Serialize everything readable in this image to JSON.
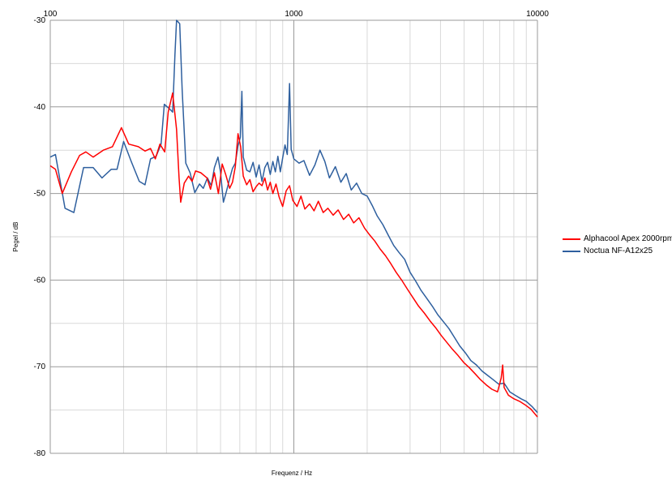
{
  "chart_data": {
    "type": "line",
    "title": "",
    "xlabel": "Frequenz / Hz",
    "ylabel": "Pegel / dB",
    "x_scale": "log",
    "xlim": [
      100,
      10000
    ],
    "ylim": [
      -80,
      -30
    ],
    "x_ticks": [
      100,
      1000,
      10000
    ],
    "x_tick_labels": [
      "100",
      "1000",
      "10000"
    ],
    "y_ticks": [
      -30,
      -40,
      -50,
      -60,
      -70,
      -80
    ],
    "y_tick_labels": [
      "-30",
      "-40",
      "-50",
      "-60",
      "-70",
      "-80"
    ],
    "grid": true,
    "legend_position": "right",
    "series": [
      {
        "name": "Alphacool Apex 2000rpm",
        "color": "#ff0000",
        "points": [
          [
            100,
            -46.8
          ],
          [
            105,
            -47.2
          ],
          [
            112,
            -50.0
          ],
          [
            122,
            -47.5
          ],
          [
            132,
            -45.6
          ],
          [
            140,
            -45.2
          ],
          [
            150,
            -45.8
          ],
          [
            165,
            -45.0
          ],
          [
            180,
            -44.6
          ],
          [
            196,
            -42.4
          ],
          [
            210,
            -44.3
          ],
          [
            230,
            -44.6
          ],
          [
            245,
            -45.1
          ],
          [
            258,
            -44.8
          ],
          [
            270,
            -46.0
          ],
          [
            282,
            -44.3
          ],
          [
            295,
            -45.2
          ],
          [
            305,
            -40.6
          ],
          [
            318,
            -38.4
          ],
          [
            330,
            -42.6
          ],
          [
            338,
            -48.2
          ],
          [
            343,
            -51.0
          ],
          [
            355,
            -48.8
          ],
          [
            370,
            -48.0
          ],
          [
            382,
            -48.6
          ],
          [
            395,
            -47.4
          ],
          [
            415,
            -47.6
          ],
          [
            440,
            -48.2
          ],
          [
            455,
            -49.5
          ],
          [
            472,
            -47.6
          ],
          [
            490,
            -50.0
          ],
          [
            508,
            -46.6
          ],
          [
            525,
            -47.8
          ],
          [
            545,
            -49.4
          ],
          [
            560,
            -48.7
          ],
          [
            575,
            -46.9
          ],
          [
            590,
            -43.1
          ],
          [
            605,
            -44.6
          ],
          [
            620,
            -48.0
          ],
          [
            640,
            -49.0
          ],
          [
            660,
            -48.4
          ],
          [
            680,
            -49.8
          ],
          [
            700,
            -49.2
          ],
          [
            720,
            -48.8
          ],
          [
            740,
            -49.1
          ],
          [
            760,
            -48.2
          ],
          [
            780,
            -49.6
          ],
          [
            800,
            -48.7
          ],
          [
            820,
            -50.0
          ],
          [
            845,
            -48.9
          ],
          [
            870,
            -50.4
          ],
          [
            900,
            -51.5
          ],
          [
            930,
            -49.7
          ],
          [
            960,
            -49.1
          ],
          [
            990,
            -50.8
          ],
          [
            1030,
            -51.5
          ],
          [
            1070,
            -50.3
          ],
          [
            1110,
            -51.8
          ],
          [
            1160,
            -51.2
          ],
          [
            1210,
            -52.0
          ],
          [
            1260,
            -50.9
          ],
          [
            1320,
            -52.2
          ],
          [
            1380,
            -51.7
          ],
          [
            1450,
            -52.5
          ],
          [
            1520,
            -51.9
          ],
          [
            1600,
            -53.0
          ],
          [
            1680,
            -52.4
          ],
          [
            1760,
            -53.4
          ],
          [
            1850,
            -52.8
          ],
          [
            1950,
            -54.0
          ],
          [
            2050,
            -54.8
          ],
          [
            2150,
            -55.5
          ],
          [
            2260,
            -56.4
          ],
          [
            2380,
            -57.2
          ],
          [
            2500,
            -58.1
          ],
          [
            2630,
            -59.1
          ],
          [
            2770,
            -60.0
          ],
          [
            2920,
            -61.0
          ],
          [
            3080,
            -62.0
          ],
          [
            3250,
            -63.0
          ],
          [
            3430,
            -63.8
          ],
          [
            3620,
            -64.7
          ],
          [
            3820,
            -65.5
          ],
          [
            4030,
            -66.4
          ],
          [
            4250,
            -67.2
          ],
          [
            4480,
            -68.0
          ],
          [
            4720,
            -68.7
          ],
          [
            4980,
            -69.5
          ],
          [
            5250,
            -70.1
          ],
          [
            5540,
            -70.8
          ],
          [
            5840,
            -71.5
          ],
          [
            6160,
            -72.1
          ],
          [
            6500,
            -72.6
          ],
          [
            6860,
            -72.9
          ],
          [
            7100,
            -71.3
          ],
          [
            7200,
            -69.8
          ],
          [
            7300,
            -72.4
          ],
          [
            7600,
            -73.3
          ],
          [
            8000,
            -73.7
          ],
          [
            8450,
            -74.0
          ],
          [
            8900,
            -74.4
          ],
          [
            9400,
            -74.9
          ],
          [
            10000,
            -75.8
          ]
        ]
      },
      {
        "name": "Noctua NF-A12x25",
        "color": "#2e5f9e",
        "points": [
          [
            100,
            -45.8
          ],
          [
            105,
            -45.5
          ],
          [
            115,
            -51.7
          ],
          [
            125,
            -52.2
          ],
          [
            137,
            -47.0
          ],
          [
            150,
            -47.0
          ],
          [
            163,
            -48.2
          ],
          [
            178,
            -47.2
          ],
          [
            188,
            -47.2
          ],
          [
            200,
            -44.0
          ],
          [
            215,
            -46.3
          ],
          [
            232,
            -48.6
          ],
          [
            245,
            -49.0
          ],
          [
            258,
            -46.0
          ],
          [
            272,
            -45.7
          ],
          [
            285,
            -44.3
          ],
          [
            294,
            -39.7
          ],
          [
            308,
            -40.2
          ],
          [
            318,
            -40.6
          ],
          [
            325,
            -34.0
          ],
          [
            330,
            -30.0
          ],
          [
            340,
            -30.4
          ],
          [
            348,
            -38.0
          ],
          [
            360,
            -46.5
          ],
          [
            375,
            -47.6
          ],
          [
            392,
            -49.9
          ],
          [
            410,
            -48.9
          ],
          [
            425,
            -49.4
          ],
          [
            442,
            -48.2
          ],
          [
            458,
            -49.1
          ],
          [
            472,
            -47.0
          ],
          [
            488,
            -45.8
          ],
          [
            500,
            -47.5
          ],
          [
            514,
            -51.0
          ],
          [
            528,
            -49.8
          ],
          [
            545,
            -48.3
          ],
          [
            560,
            -47.1
          ],
          [
            575,
            -46.5
          ],
          [
            590,
            -44.5
          ],
          [
            603,
            -43.5
          ],
          [
            612,
            -38.2
          ],
          [
            620,
            -45.8
          ],
          [
            640,
            -47.3
          ],
          [
            660,
            -47.5
          ],
          [
            680,
            -46.4
          ],
          [
            700,
            -48.1
          ],
          [
            720,
            -46.7
          ],
          [
            740,
            -48.6
          ],
          [
            760,
            -47.0
          ],
          [
            780,
            -46.4
          ],
          [
            800,
            -47.8
          ],
          [
            820,
            -46.3
          ],
          [
            840,
            -47.5
          ],
          [
            860,
            -45.7
          ],
          [
            880,
            -47.5
          ],
          [
            900,
            -45.9
          ],
          [
            920,
            -44.4
          ],
          [
            940,
            -45.5
          ],
          [
            960,
            -37.3
          ],
          [
            975,
            -44.9
          ],
          [
            1000,
            -46.0
          ],
          [
            1050,
            -46.5
          ],
          [
            1100,
            -46.2
          ],
          [
            1160,
            -47.9
          ],
          [
            1220,
            -46.7
          ],
          [
            1280,
            -45.0
          ],
          [
            1340,
            -46.3
          ],
          [
            1400,
            -48.2
          ],
          [
            1480,
            -46.9
          ],
          [
            1560,
            -48.7
          ],
          [
            1640,
            -47.7
          ],
          [
            1720,
            -49.6
          ],
          [
            1810,
            -48.8
          ],
          [
            1900,
            -50.0
          ],
          [
            2000,
            -50.3
          ],
          [
            2100,
            -51.4
          ],
          [
            2200,
            -52.6
          ],
          [
            2320,
            -53.6
          ],
          [
            2440,
            -54.8
          ],
          [
            2570,
            -56.0
          ],
          [
            2700,
            -56.8
          ],
          [
            2850,
            -57.6
          ],
          [
            3000,
            -59.1
          ],
          [
            3160,
            -60.1
          ],
          [
            3330,
            -61.2
          ],
          [
            3510,
            -62.1
          ],
          [
            3700,
            -63.0
          ],
          [
            3900,
            -64.0
          ],
          [
            4110,
            -64.8
          ],
          [
            4330,
            -65.6
          ],
          [
            4560,
            -66.6
          ],
          [
            4800,
            -67.6
          ],
          [
            5060,
            -68.4
          ],
          [
            5330,
            -69.3
          ],
          [
            5620,
            -69.8
          ],
          [
            5920,
            -70.5
          ],
          [
            6240,
            -71.0
          ],
          [
            6580,
            -71.5
          ],
          [
            6930,
            -72.0
          ],
          [
            7300,
            -71.9
          ],
          [
            7700,
            -72.9
          ],
          [
            8100,
            -73.3
          ],
          [
            8550,
            -73.7
          ],
          [
            9000,
            -74.0
          ],
          [
            9500,
            -74.6
          ],
          [
            10000,
            -75.3
          ]
        ]
      }
    ]
  }
}
